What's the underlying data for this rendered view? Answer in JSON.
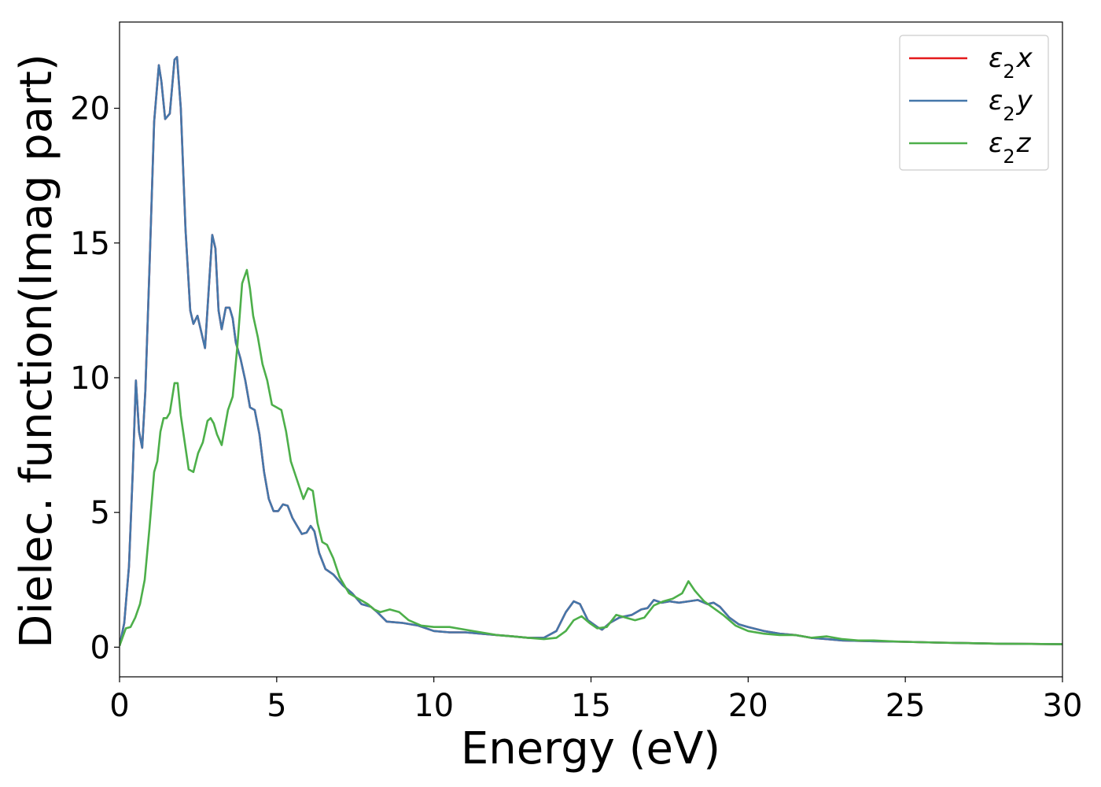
{
  "chart_data": {
    "type": "line",
    "xlabel": "Energy (eV)",
    "ylabel": "Dielec. function(Imag part)",
    "xlim": [
      0,
      30
    ],
    "ylim": [
      -1.1,
      23.2
    ],
    "xticks": [
      "0",
      "5",
      "10",
      "15",
      "20",
      "25",
      "30"
    ],
    "yticks": [
      "0",
      "5",
      "10",
      "15",
      "20"
    ],
    "grid": false,
    "legend_position": "top-right",
    "series": [
      {
        "name": "ε₂x",
        "legend_base": "ε",
        "legend_sub": "2",
        "legend_axis": "x",
        "color": "#e41a1c",
        "x": [
          0,
          0.15,
          0.3,
          0.42,
          0.52,
          0.62,
          0.72,
          0.82,
          0.95,
          1.1,
          1.25,
          1.33,
          1.45,
          1.6,
          1.75,
          1.83,
          1.95,
          2.1,
          2.25,
          2.35,
          2.48,
          2.58,
          2.72,
          2.85,
          2.95,
          3.05,
          3.15,
          3.25,
          3.38,
          3.5,
          3.6,
          3.7,
          3.85,
          4.0,
          4.15,
          4.3,
          4.45,
          4.6,
          4.75,
          4.9,
          5.05,
          5.2,
          5.35,
          5.5,
          5.65,
          5.8,
          5.95,
          6.08,
          6.2,
          6.35,
          6.55,
          6.8,
          7.1,
          7.4,
          7.7,
          8.0,
          8.2,
          8.5,
          9.0,
          9.5,
          10.0,
          10.5,
          11.0,
          11.5,
          12.0,
          12.5,
          13.0,
          13.5,
          13.9,
          14.2,
          14.45,
          14.65,
          14.9,
          15.2,
          15.35,
          15.6,
          15.9,
          16.3,
          16.6,
          16.8,
          17.0,
          17.25,
          17.5,
          17.8,
          18.1,
          18.4,
          18.7,
          18.9,
          19.1,
          19.4,
          19.7,
          20.0,
          20.5,
          21.0,
          21.5,
          22.0,
          22.5,
          23.0,
          24.0,
          25.0,
          26.0,
          27.0,
          28.0,
          29.0,
          30.0
        ],
        "values": [
          0.05,
          0.9,
          3.0,
          6.5,
          9.9,
          8.0,
          7.4,
          9.5,
          14.0,
          19.5,
          21.6,
          21.0,
          19.6,
          19.8,
          21.8,
          21.9,
          20.0,
          15.5,
          12.5,
          12.0,
          12.3,
          11.8,
          11.1,
          13.5,
          15.3,
          14.8,
          12.5,
          11.8,
          12.6,
          12.6,
          12.2,
          11.3,
          10.7,
          9.9,
          8.9,
          8.8,
          7.9,
          6.5,
          5.5,
          5.05,
          5.05,
          5.3,
          5.25,
          4.8,
          4.5,
          4.2,
          4.25,
          4.5,
          4.3,
          3.5,
          2.9,
          2.7,
          2.3,
          2.0,
          1.6,
          1.5,
          1.3,
          0.95,
          0.9,
          0.8,
          0.6,
          0.55,
          0.55,
          0.5,
          0.45,
          0.4,
          0.35,
          0.35,
          0.6,
          1.3,
          1.7,
          1.6,
          1.0,
          0.75,
          0.65,
          0.9,
          1.1,
          1.2,
          1.4,
          1.45,
          1.75,
          1.65,
          1.7,
          1.65,
          1.7,
          1.75,
          1.6,
          1.65,
          1.5,
          1.1,
          0.85,
          0.75,
          0.6,
          0.5,
          0.45,
          0.35,
          0.3,
          0.25,
          0.22,
          0.2,
          0.17,
          0.15,
          0.13,
          0.12,
          0.11
        ]
      },
      {
        "name": "ε₂y",
        "legend_base": "ε",
        "legend_sub": "2",
        "legend_axis": "y",
        "color": "#4477aa",
        "x": [
          0,
          0.15,
          0.3,
          0.42,
          0.52,
          0.62,
          0.72,
          0.82,
          0.95,
          1.1,
          1.25,
          1.33,
          1.45,
          1.6,
          1.75,
          1.83,
          1.95,
          2.1,
          2.25,
          2.35,
          2.48,
          2.58,
          2.72,
          2.85,
          2.95,
          3.05,
          3.15,
          3.25,
          3.38,
          3.5,
          3.6,
          3.7,
          3.85,
          4.0,
          4.15,
          4.3,
          4.45,
          4.6,
          4.75,
          4.9,
          5.05,
          5.2,
          5.35,
          5.5,
          5.65,
          5.8,
          5.95,
          6.08,
          6.2,
          6.35,
          6.55,
          6.8,
          7.1,
          7.4,
          7.7,
          8.0,
          8.2,
          8.5,
          9.0,
          9.5,
          10.0,
          10.5,
          11.0,
          11.5,
          12.0,
          12.5,
          13.0,
          13.5,
          13.9,
          14.2,
          14.45,
          14.65,
          14.9,
          15.2,
          15.35,
          15.6,
          15.9,
          16.3,
          16.6,
          16.8,
          17.0,
          17.25,
          17.5,
          17.8,
          18.1,
          18.4,
          18.7,
          18.9,
          19.1,
          19.4,
          19.7,
          20.0,
          20.5,
          21.0,
          21.5,
          22.0,
          22.5,
          23.0,
          24.0,
          25.0,
          26.0,
          27.0,
          28.0,
          29.0,
          30.0
        ],
        "values": [
          0.05,
          0.9,
          3.0,
          6.5,
          9.9,
          8.0,
          7.4,
          9.5,
          14.0,
          19.5,
          21.6,
          21.0,
          19.6,
          19.8,
          21.8,
          21.9,
          20.0,
          15.5,
          12.5,
          12.0,
          12.3,
          11.8,
          11.1,
          13.5,
          15.3,
          14.8,
          12.5,
          11.8,
          12.6,
          12.6,
          12.2,
          11.3,
          10.7,
          9.9,
          8.9,
          8.8,
          7.9,
          6.5,
          5.5,
          5.05,
          5.05,
          5.3,
          5.25,
          4.8,
          4.5,
          4.2,
          4.25,
          4.5,
          4.3,
          3.5,
          2.9,
          2.7,
          2.3,
          2.0,
          1.6,
          1.5,
          1.3,
          0.95,
          0.9,
          0.8,
          0.6,
          0.55,
          0.55,
          0.5,
          0.45,
          0.4,
          0.35,
          0.35,
          0.6,
          1.3,
          1.7,
          1.6,
          1.0,
          0.75,
          0.65,
          0.9,
          1.1,
          1.2,
          1.4,
          1.45,
          1.75,
          1.65,
          1.7,
          1.65,
          1.7,
          1.75,
          1.6,
          1.65,
          1.5,
          1.1,
          0.85,
          0.75,
          0.6,
          0.5,
          0.45,
          0.35,
          0.3,
          0.25,
          0.22,
          0.2,
          0.17,
          0.15,
          0.13,
          0.12,
          0.11
        ]
      },
      {
        "name": "ε₂z",
        "legend_base": "ε",
        "legend_sub": "2",
        "legend_axis": "z",
        "color": "#4daf4a",
        "x": [
          0,
          0.2,
          0.35,
          0.5,
          0.65,
          0.8,
          0.95,
          1.1,
          1.2,
          1.3,
          1.4,
          1.5,
          1.6,
          1.75,
          1.85,
          1.95,
          2.05,
          2.2,
          2.35,
          2.5,
          2.65,
          2.8,
          2.9,
          3.0,
          3.1,
          3.25,
          3.45,
          3.6,
          3.75,
          3.9,
          4.05,
          4.15,
          4.25,
          4.4,
          4.55,
          4.7,
          4.85,
          5.0,
          5.15,
          5.3,
          5.45,
          5.65,
          5.85,
          6.0,
          6.15,
          6.3,
          6.45,
          6.6,
          6.8,
          7.0,
          7.3,
          7.6,
          7.9,
          8.1,
          8.3,
          8.6,
          8.9,
          9.2,
          9.6,
          10.0,
          10.5,
          11.0,
          11.5,
          12.0,
          12.5,
          13.0,
          13.5,
          13.9,
          14.2,
          14.45,
          14.7,
          14.95,
          15.2,
          15.5,
          15.8,
          16.1,
          16.4,
          16.7,
          17.0,
          17.3,
          17.6,
          17.9,
          18.1,
          18.3,
          18.6,
          18.9,
          19.2,
          19.6,
          20.0,
          20.5,
          21.0,
          21.5,
          22.0,
          22.5,
          23.0,
          23.5,
          24.0,
          24.5,
          25.0,
          26.0,
          27.0,
          28.0,
          29.0,
          30.0
        ],
        "values": [
          0.05,
          0.7,
          0.75,
          1.1,
          1.6,
          2.5,
          4.4,
          6.5,
          6.9,
          8.0,
          8.5,
          8.5,
          8.7,
          9.8,
          9.8,
          8.6,
          7.8,
          6.6,
          6.5,
          7.2,
          7.6,
          8.4,
          8.5,
          8.3,
          7.9,
          7.5,
          8.8,
          9.3,
          11.2,
          13.5,
          14.0,
          13.3,
          12.3,
          11.5,
          10.5,
          9.9,
          9.0,
          8.9,
          8.8,
          8.0,
          6.9,
          6.2,
          5.5,
          5.9,
          5.8,
          4.6,
          3.9,
          3.8,
          3.3,
          2.6,
          2.0,
          1.8,
          1.6,
          1.4,
          1.3,
          1.4,
          1.3,
          1.0,
          0.8,
          0.75,
          0.75,
          0.65,
          0.55,
          0.45,
          0.4,
          0.35,
          0.3,
          0.35,
          0.6,
          1.0,
          1.15,
          0.9,
          0.7,
          0.75,
          1.2,
          1.1,
          1.0,
          1.1,
          1.55,
          1.7,
          1.8,
          2.0,
          2.45,
          2.1,
          1.7,
          1.45,
          1.2,
          0.8,
          0.6,
          0.5,
          0.45,
          0.45,
          0.35,
          0.4,
          0.3,
          0.25,
          0.25,
          0.22,
          0.2,
          0.17,
          0.15,
          0.13,
          0.12,
          0.11
        ]
      }
    ]
  }
}
